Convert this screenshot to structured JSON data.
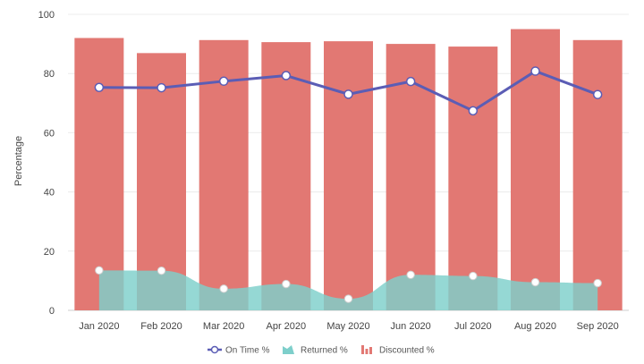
{
  "chart_data": {
    "type": "bar",
    "title": "",
    "xlabel": "",
    "ylabel": "Percentage",
    "ylim": [
      0,
      100
    ],
    "yticks": [
      0,
      20,
      40,
      60,
      80,
      100
    ],
    "grid": true,
    "categories": [
      "Jan 2020",
      "Feb 2020",
      "Mar 2020",
      "Apr 2020",
      "May 2020",
      "Jun 2020",
      "Jul 2020",
      "Aug 2020",
      "Sep 2020"
    ],
    "series": [
      {
        "name": "On Time %",
        "kind": "line",
        "color": "#5B5DB5",
        "values": [
          75.3,
          75.2,
          77.4,
          79.3,
          73.0,
          77.3,
          67.4,
          80.8,
          72.9
        ]
      },
      {
        "name": "Returned %",
        "kind": "area",
        "color": "#7ECFCB",
        "values": [
          13.5,
          13.4,
          7.3,
          8.9,
          3.9,
          12.0,
          11.6,
          9.5,
          9.2
        ]
      },
      {
        "name": "Discounted %",
        "kind": "bar",
        "color": "#E27873",
        "values": [
          92.0,
          86.9,
          91.3,
          90.6,
          90.9,
          90.0,
          89.1,
          95.0,
          91.3
        ]
      }
    ],
    "legend": {
      "placement": "bottom-center",
      "items": [
        "On Time %",
        "Returned %",
        "Discounted %"
      ]
    }
  }
}
